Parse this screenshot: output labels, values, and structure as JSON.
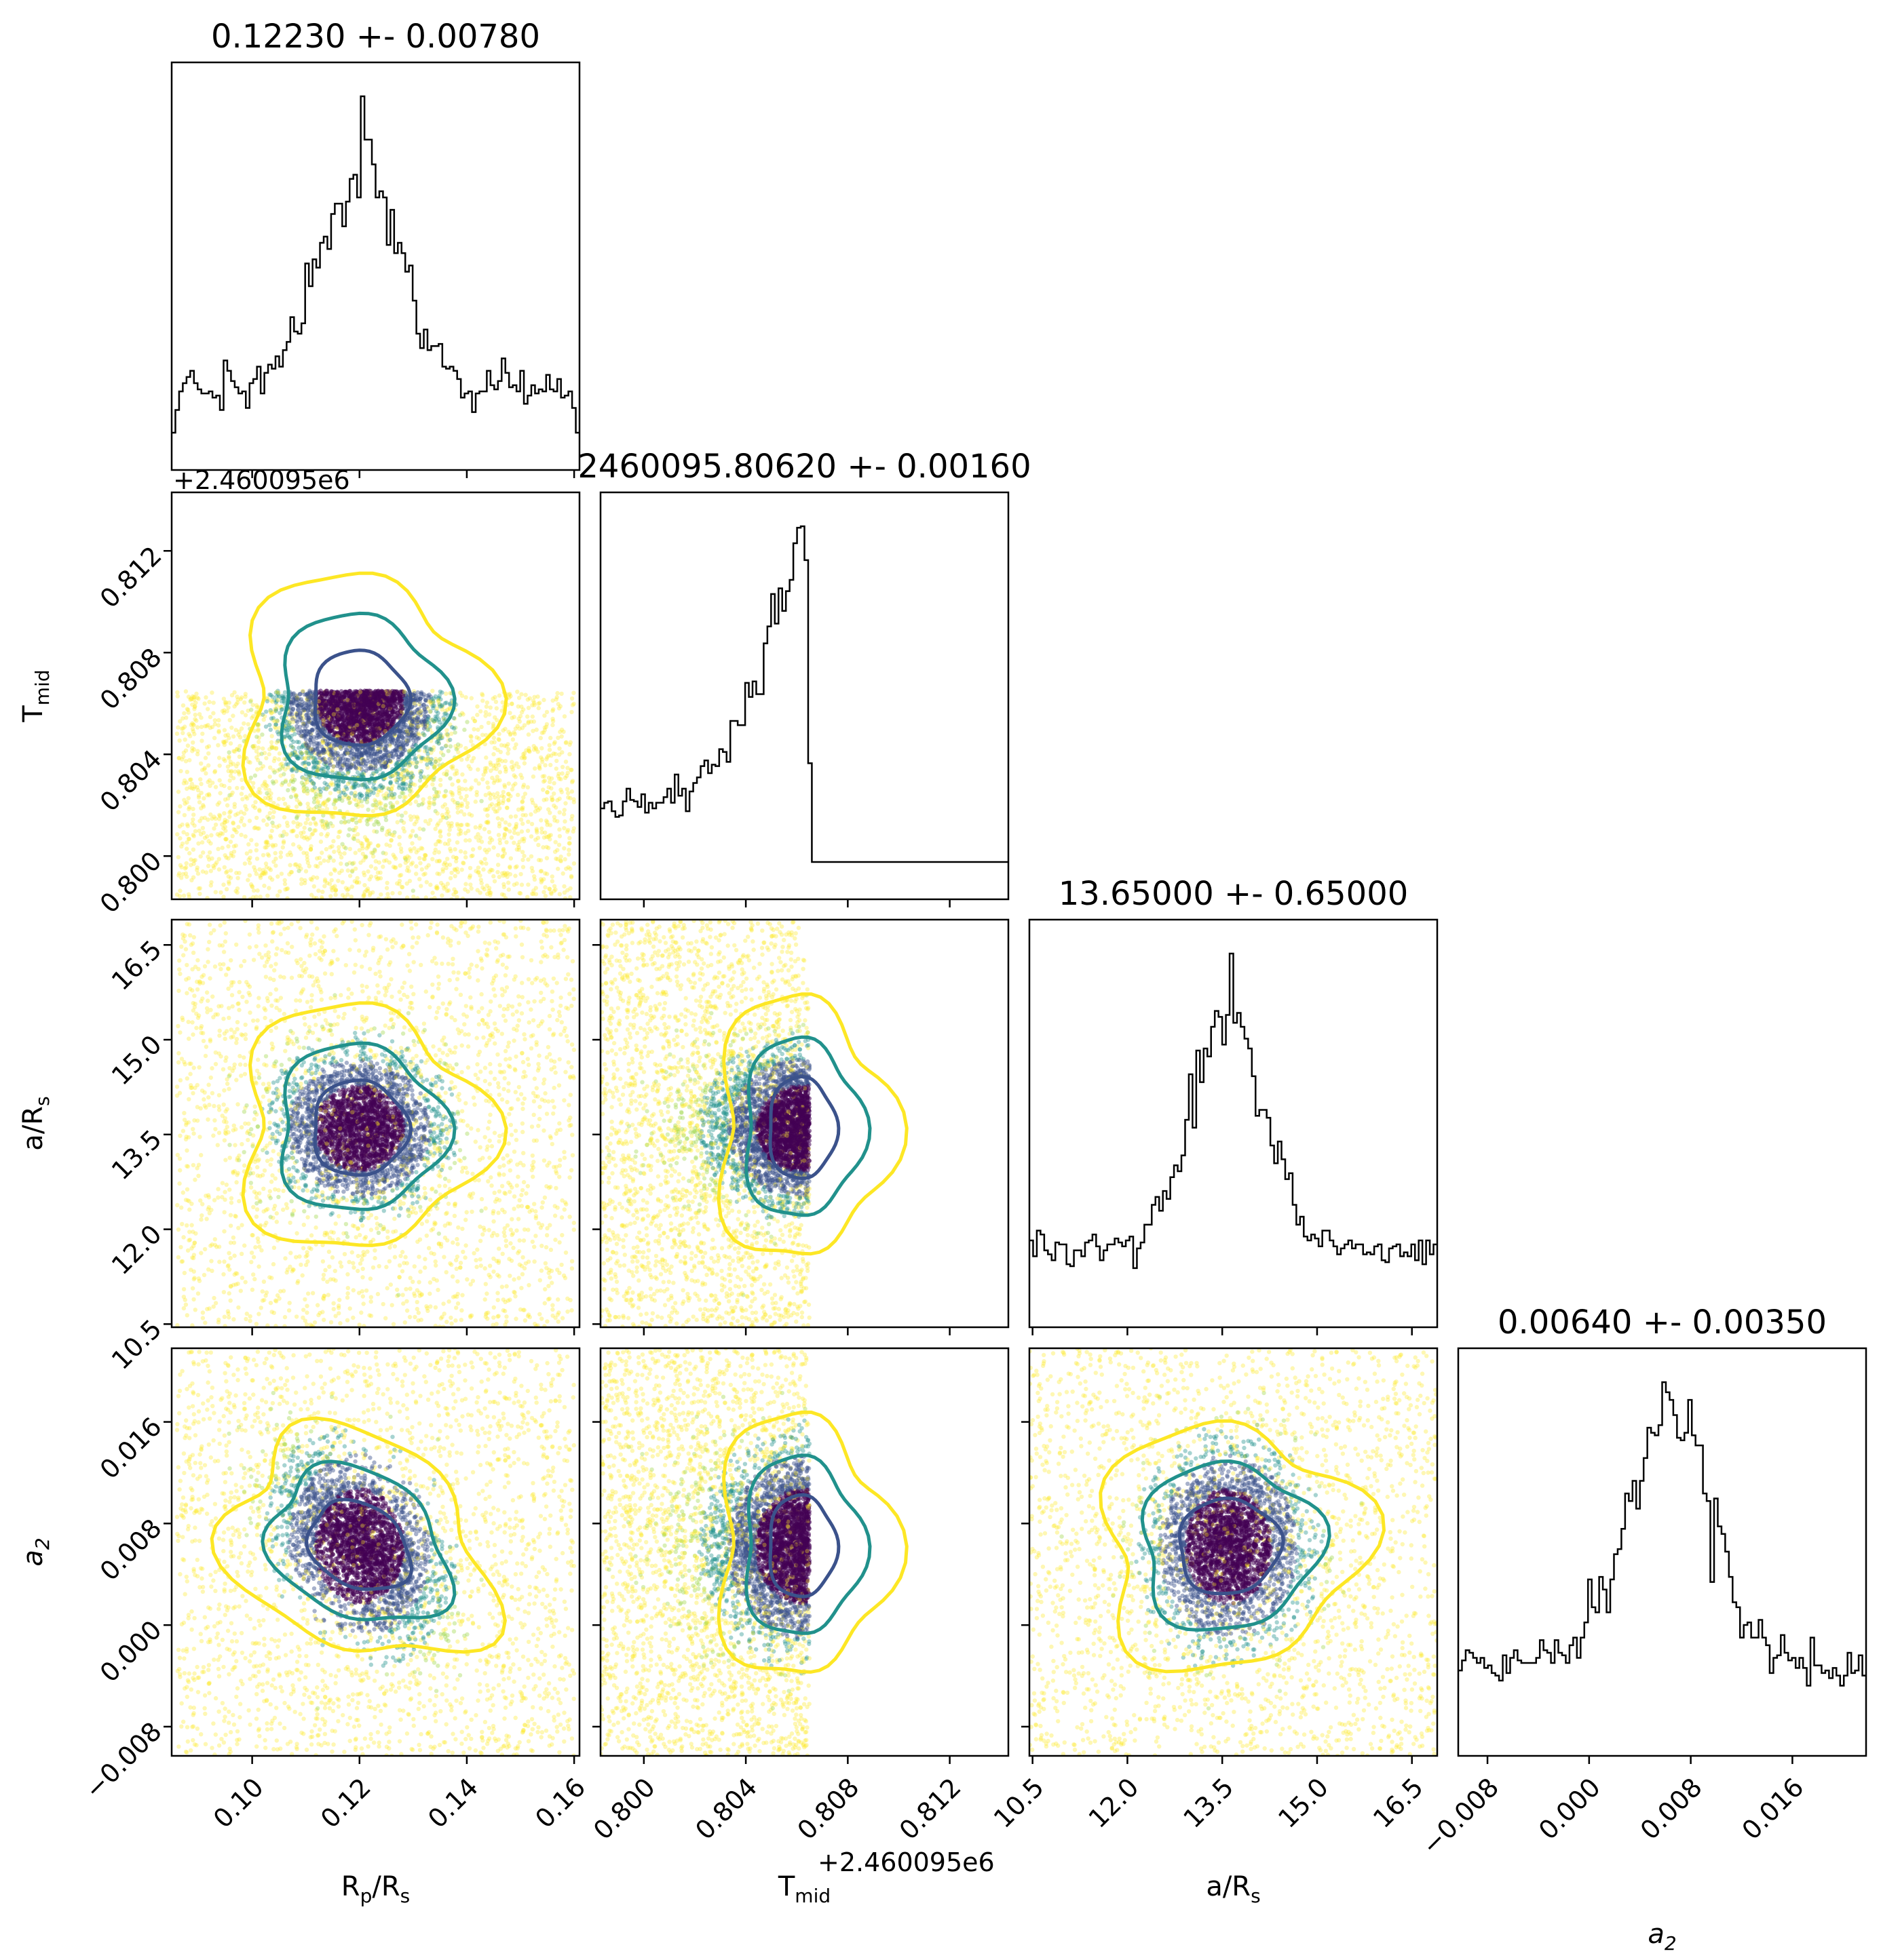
{
  "chart_data": [
    {
      "type": "histogram",
      "panel": "diag-0",
      "title": "0.12230 +- 0.00780",
      "xlim": [
        0.085,
        0.161
      ],
      "mode": 0.12,
      "description_values": {
        "center": 0.1223,
        "sigma": 0.0078
      },
      "x_ticks": [
        0.1,
        0.12,
        0.14,
        0.16
      ]
    },
    {
      "type": "scatter",
      "panel": "Tmid-vs-RpRs",
      "x_variable": "R_p/R_s",
      "y_variable": "T_mid",
      "xlim": [
        0.085,
        0.161
      ],
      "ylim": [
        0.7983,
        0.8143
      ],
      "y_ticks": [
        "0.800",
        "0.804",
        "0.808",
        "0.812"
      ],
      "y_offset_text": "+2.460095e6",
      "truncation_upper": 0.8065
    },
    {
      "type": "histogram",
      "panel": "diag-1",
      "title": "2460095.80620 +- 0.00160",
      "xlim": [
        0.7983,
        0.8143
      ],
      "peak": 0.8062,
      "cutoff": 0.8065,
      "x_ticks": [
        "0.800",
        "0.804",
        "0.808",
        "0.812"
      ],
      "x_offset_text": "+2.460095e6"
    },
    {
      "type": "scatter",
      "panel": "aRs-vs-RpRs",
      "x_variable": "R_p/R_s",
      "y_variable": "a/R_s",
      "xlim": [
        0.085,
        0.161
      ],
      "ylim": [
        10.45,
        16.9
      ],
      "y_ticks": [
        "10.5",
        "12.0",
        "13.5",
        "15.0",
        "16.5"
      ],
      "center": [
        0.12,
        13.6
      ]
    },
    {
      "type": "scatter",
      "panel": "aRs-vs-Tmid",
      "x_variable": "T_mid",
      "y_variable": "a/R_s",
      "xlim": [
        0.7983,
        0.8143
      ],
      "ylim": [
        10.45,
        16.9
      ],
      "center": [
        0.8062,
        13.6
      ]
    },
    {
      "type": "histogram",
      "panel": "diag-2",
      "title": "13.65000 +- 0.65000",
      "xlim": [
        10.45,
        16.9
      ],
      "peak": 13.6,
      "x_ticks": [
        "10.5",
        "12.0",
        "13.5",
        "15.0",
        "16.5"
      ]
    },
    {
      "type": "scatter",
      "panel": "a2-vs-RpRs",
      "x_variable": "R_p/R_s",
      "y_variable": "a_2",
      "xlim": [
        0.085,
        0.161
      ],
      "ylim": [
        -0.0103,
        0.0218
      ],
      "y_ticks": [
        "−0.008",
        "0.000",
        "0.008",
        "0.016"
      ],
      "x_ticks": [
        "0.10",
        "0.12",
        "0.14",
        "0.16"
      ],
      "center": [
        0.12,
        0.0062
      ]
    },
    {
      "type": "scatter",
      "panel": "a2-vs-Tmid",
      "x_variable": "T_mid",
      "y_variable": "a_2",
      "xlim": [
        0.7983,
        0.8143
      ],
      "ylim": [
        -0.0103,
        0.0218
      ],
      "x_ticks": [
        "0.800",
        "0.804",
        "0.808",
        "0.812"
      ],
      "center": [
        0.8062,
        0.0062
      ]
    },
    {
      "type": "scatter",
      "panel": "a2-vs-aRs",
      "x_variable": "a/R_s",
      "y_variable": "a_2",
      "xlim": [
        10.45,
        16.9
      ],
      "ylim": [
        -0.0103,
        0.0218
      ],
      "x_ticks": [
        "10.5",
        "12.0",
        "13.5",
        "15.0",
        "16.5"
      ],
      "center": [
        13.6,
        0.0062
      ]
    },
    {
      "type": "histogram",
      "panel": "diag-3",
      "title": "0.00640 +- 0.00350",
      "xlim": [
        -0.0103,
        0.0218
      ],
      "peak": 0.0062,
      "x_ticks": [
        "−0.008",
        "0.000",
        "0.008",
        "0.016"
      ]
    }
  ],
  "labels": {
    "x": [
      {
        "base": "R",
        "sub": "p",
        "rest": "/R",
        "sub2": "s"
      },
      {
        "base": "T",
        "sub": "mid",
        "rest": "",
        "sub2": ""
      },
      {
        "base": "a/R",
        "sub": "s",
        "rest": "",
        "sub2": ""
      },
      {
        "base": "a",
        "sub": "2",
        "rest": "",
        "sub2": "",
        "italic": true
      }
    ],
    "y": [
      {
        "base": "T",
        "sub": "mid"
      },
      {
        "base": "a/R",
        "sub": "s"
      },
      {
        "base": "a",
        "sub": "2",
        "italic": true
      }
    ],
    "offset_text_y": "+2.460095e6",
    "offset_text_x": "+2.460095e6"
  },
  "colors": {
    "contour_inner": "#3b528b",
    "contour_mid": "#21918c",
    "contour_outer": "#fde725",
    "dense": "#440154",
    "hist_line": "#000000"
  }
}
